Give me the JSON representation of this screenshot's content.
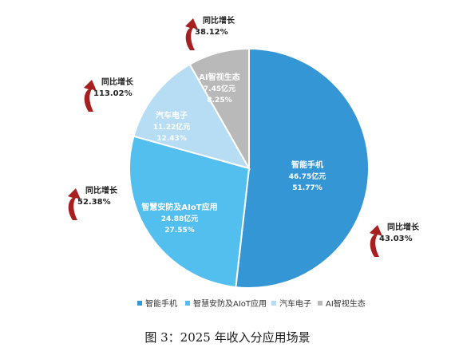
{
  "chart_data": {
    "type": "pie",
    "slices": [
      {
        "name": "智能手机",
        "value_label": "46.75亿元",
        "percent_label": "51.77%",
        "value": 46.75,
        "percent": 51.77,
        "color": "#3596d6"
      },
      {
        "name": "智慧安防及AIoT应用",
        "value_label": "24.88亿元",
        "percent_label": "27.55%",
        "value": 24.88,
        "percent": 27.55,
        "color": "#53bfee"
      },
      {
        "name": "汽车电子",
        "value_label": "11.22亿元",
        "percent_label": "12.43%",
        "value": 11.22,
        "percent": 12.43,
        "color": "#b7ddf5"
      },
      {
        "name": "AI智视生态",
        "value_label": "7.45亿元",
        "percent_label": "8.25%",
        "value": 7.45,
        "percent": 8.25,
        "color": "#b9b9b9"
      }
    ],
    "annotations": [
      {
        "slice": "智能手机",
        "label": "同比增长",
        "value": "43.03%"
      },
      {
        "slice": "智慧安防及AIoT应用",
        "label": "同比增长",
        "value": "52.38%"
      },
      {
        "slice": "汽车电子",
        "label": "同比增长",
        "value": "113.02%"
      },
      {
        "slice": "AI智视生态",
        "label": "同比增长",
        "value": "38.12%"
      }
    ],
    "legend": {
      "placement": "bottom",
      "items": [
        "智能手机",
        "智慧安防及AIoT应用",
        "汽车电子",
        "AI智视生态"
      ]
    },
    "arrow_color": "#a81f1f"
  },
  "caption": "图 3：2025 年收入分应用场景"
}
